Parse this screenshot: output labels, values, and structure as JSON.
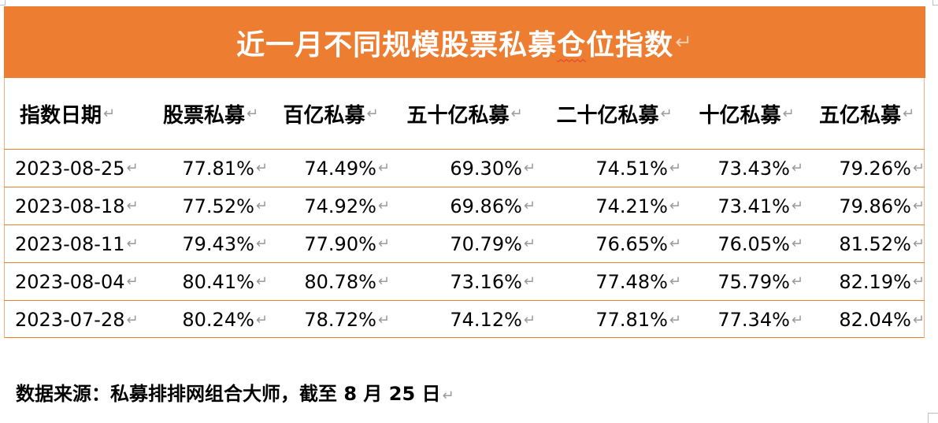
{
  "title": "近一月不同规模股票私募仓位指数",
  "title_underlined_part": "仓",
  "paragraph_mark": "↵",
  "cell_mark": "↵",
  "colors": {
    "header_fill": "#ed7d31",
    "border": "#ed7d31"
  },
  "table": {
    "headers": [
      "指数日期",
      "股票私募",
      "百亿私募",
      "五十亿私募",
      "二十亿私募",
      "十亿私募",
      "五亿私募"
    ],
    "rows": [
      [
        "2023-08-25",
        "77.81%",
        "74.49%",
        "69.30%",
        "74.51%",
        "73.43%",
        "79.26%"
      ],
      [
        "2023-08-18",
        "77.52%",
        "74.92%",
        "69.86%",
        "74.21%",
        "73.41%",
        "79.86%"
      ],
      [
        "2023-08-11",
        "79.43%",
        "77.90%",
        "70.79%",
        "76.65%",
        "76.05%",
        "81.52%"
      ],
      [
        "2023-08-04",
        "80.41%",
        "80.78%",
        "73.16%",
        "77.48%",
        "75.79%",
        "82.19%"
      ],
      [
        "2023-07-28",
        "80.24%",
        "78.72%",
        "74.12%",
        "77.81%",
        "77.34%",
        "82.04%"
      ]
    ]
  },
  "source": "数据来源：私募排排网组合大师，截至 8 月 25 日"
}
